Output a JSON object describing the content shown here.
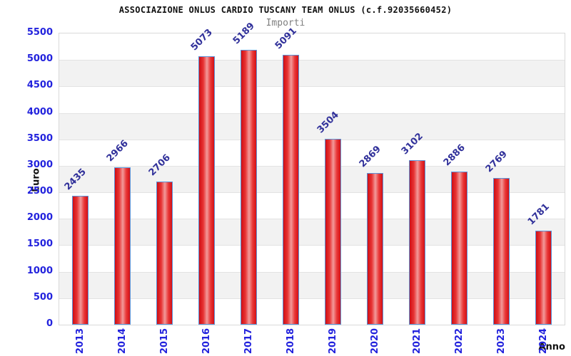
{
  "header": {
    "title": "ASSOCIAZIONE ONLUS CARDIO TUSCANY TEAM ONLUS (c.f.92035660452)",
    "subtitle": "Importi"
  },
  "chart_data": {
    "type": "bar",
    "title": "ASSOCIAZIONE ONLUS CARDIO TUSCANY TEAM ONLUS (c.f.92035660452)",
    "subtitle": "Importi",
    "xlabel": "Anno",
    "ylabel": "Euro",
    "categories": [
      "2013",
      "2014",
      "2015",
      "2016",
      "2017",
      "2018",
      "2019",
      "2020",
      "2021",
      "2022",
      "2023",
      "2024"
    ],
    "values": [
      2435,
      2966,
      2706,
      5073,
      5189,
      5091,
      3504,
      2869,
      3102,
      2886,
      2769,
      1781
    ],
    "ylim": [
      0,
      5500
    ],
    "ytick_step": 500,
    "yticks": [
      0,
      500,
      1000,
      1500,
      2000,
      2500,
      3000,
      3500,
      4000,
      4500,
      5000,
      5500
    ],
    "grid": true,
    "legend": "none",
    "colors": {
      "tick_label": "#2222dd",
      "value_label": "#30309a",
      "bar_border": "#5b93d8",
      "bar_gradient": [
        "#cf0e14",
        "#e83434",
        "#f29a9a",
        "#e93737",
        "#d41015"
      ],
      "band": "#f2f2f2",
      "gridline": "#e3e3e3",
      "plot_border": "#d9d9d9",
      "title": "#111111",
      "subtitle": "#7f7f7f",
      "axis_title": "#111111"
    }
  }
}
